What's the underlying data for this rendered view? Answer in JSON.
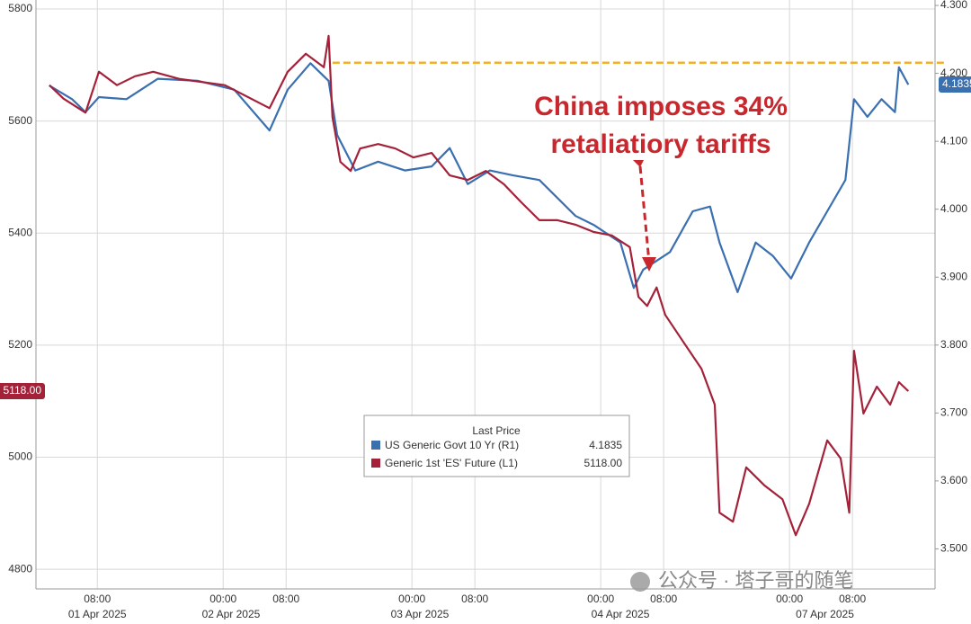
{
  "chart_data": {
    "type": "line",
    "annotation": [
      "China imposes 34%",
      "retaliatiory tariffs"
    ],
    "legend_title": "Last Price",
    "watermark": "公众号 · 塔子哥的随笔",
    "xlim": [
      0.2,
      114.5
    ],
    "xticks": [
      {
        "value": 8,
        "label": "08:00"
      },
      {
        "value": 24,
        "label": "00:00"
      },
      {
        "value": 32,
        "label": "08:00"
      },
      {
        "value": 48,
        "label": "00:00"
      },
      {
        "value": 56,
        "label": "08:00"
      },
      {
        "value": 72,
        "label": "00:00"
      },
      {
        "value": 80,
        "label": "08:00"
      },
      {
        "value": 96,
        "label": "00:00"
      },
      {
        "value": 104,
        "label": "08:00"
      }
    ],
    "date_ticks": [
      {
        "value": 8,
        "label": "01 Apr 2025"
      },
      {
        "value": 25,
        "label": "02 Apr 2025"
      },
      {
        "value": 49,
        "label": "03 Apr 2025"
      },
      {
        "value": 74.5,
        "label": "04 Apr 2025"
      },
      {
        "value": 100.5,
        "label": "07 Apr 2025"
      }
    ],
    "ylim": [
      4765,
      5816
    ],
    "yticks": [
      4800,
      5000,
      5200,
      5400,
      5600,
      5800
    ],
    "y2lim": [
      3.441,
      4.308
    ],
    "y2ticks": [
      {
        "value": 3.5,
        "label": "3.500"
      },
      {
        "value": 3.6,
        "label": "3.600"
      },
      {
        "value": 3.7,
        "label": "3.700"
      },
      {
        "value": 3.8,
        "label": "3.800"
      },
      {
        "value": 3.9,
        "label": "3.900"
      },
      {
        "value": 4.0,
        "label": "4.000"
      },
      {
        "value": 4.1,
        "label": "4.100"
      },
      {
        "value": 4.2,
        "label": "4.200"
      },
      {
        "value": 4.3,
        "label": "4.300"
      }
    ],
    "grid": true,
    "hline": {
      "value": 5704,
      "from": 37.9,
      "color": "#f0b030"
    },
    "series": [
      {
        "name": "US Generic Govt 10 Yr  (R1)",
        "color": "#3a6fb0",
        "axis": "y2",
        "last_value": 4.1835,
        "x": [
          1.9,
          4.8,
          6.5,
          8.2,
          11.7,
          15.7,
          20.8,
          25.4,
          29.9,
          32.2,
          35.1,
          37.4,
          38.5,
          40.8,
          43.7,
          47.1,
          50.5,
          52.8,
          55.1,
          57.9,
          60.8,
          64.2,
          68.8,
          71.1,
          74.5,
          76.2,
          77.4,
          79.1,
          80.8,
          83.7,
          85.9,
          87.1,
          89.4,
          91.7,
          93.9,
          96.2,
          98.5,
          100.8,
          103.1,
          104.2,
          105.9,
          107.7,
          109.4,
          109.9,
          111.1
        ],
        "values": [
          4.182,
          4.162,
          4.143,
          4.165,
          4.162,
          4.192,
          4.189,
          4.176,
          4.116,
          4.176,
          4.215,
          4.189,
          4.109,
          4.057,
          4.07,
          4.057,
          4.063,
          4.09,
          4.037,
          4.057,
          4.05,
          4.043,
          3.99,
          3.977,
          3.951,
          3.884,
          3.911,
          3.924,
          3.937,
          3.997,
          4.004,
          3.951,
          3.878,
          3.951,
          3.931,
          3.898,
          3.951,
          3.997,
          4.043,
          4.162,
          4.136,
          4.162,
          4.143,
          4.209,
          4.1835
        ]
      },
      {
        "name": "Generic 1st 'ES' Future  (L1)",
        "color": "#a3223a",
        "axis": "y",
        "last_value": 5118,
        "last_value_label": "5118.00",
        "x": [
          1.9,
          3.7,
          6.5,
          8.2,
          10.5,
          12.8,
          15.1,
          18.5,
          24.2,
          29.9,
          32.2,
          34.5,
          36.8,
          37.4,
          37.9,
          38.9,
          40.2,
          41.4,
          43.7,
          45.9,
          48.2,
          50.5,
          52.8,
          55.1,
          57.4,
          59.7,
          61.9,
          64.2,
          66.5,
          68.8,
          71.1,
          73.4,
          75.7,
          76.8,
          77.9,
          79.1,
          80.2,
          82.5,
          84.8,
          86.5,
          87.1,
          88.8,
          90.5,
          92.8,
          95.1,
          96.8,
          98.5,
          100.8,
          102.5,
          103.6,
          104.2,
          105.4,
          107.1,
          108.8,
          109.9,
          111.1
        ],
        "values": [
          5664,
          5640,
          5615,
          5688,
          5664,
          5680,
          5688,
          5675,
          5664,
          5623,
          5688,
          5720,
          5696,
          5752,
          5607,
          5527,
          5511,
          5551,
          5559,
          5551,
          5535,
          5543,
          5503,
          5495,
          5511,
          5487,
          5455,
          5423,
          5423,
          5415,
          5402,
          5396,
          5375,
          5286,
          5270,
          5303,
          5254,
          5206,
          5158,
          5094,
          4901,
          4885,
          4982,
          4950,
          4925,
          4861,
          4917,
          5030,
          4998,
          4901,
          5190,
          5078,
          5126,
          5094,
          5134,
          5118
        ]
      }
    ]
  }
}
